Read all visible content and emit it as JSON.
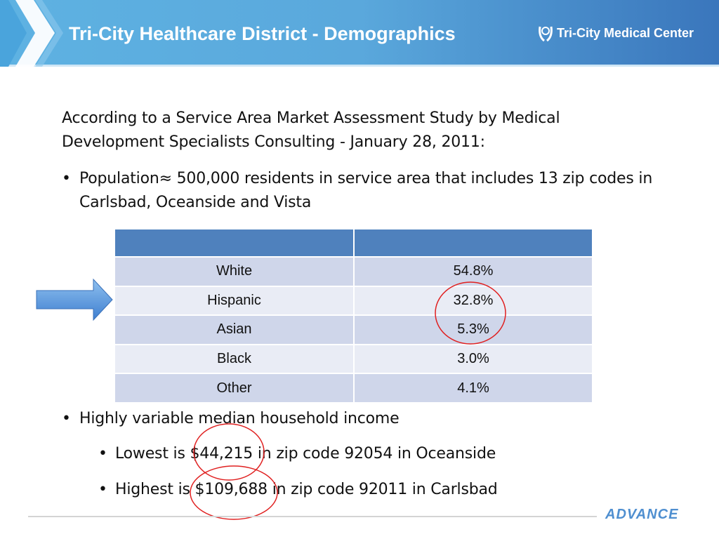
{
  "header": {
    "title": "Tri-City Healthcare District - Demographics",
    "logo_text": "Tri-City Medical Center"
  },
  "intro": {
    "line1": "According to a Service Area Market Assessment Study by Medical",
    "line2": "Development Specialists Consulting - January 28, 2011:"
  },
  "bullets": {
    "population_line1": "Population≈ 500,000 residents in service area that includes 13 zip codes in",
    "population_line2": "Carlsbad, Oceanside and Vista",
    "income": "Highly variable median household income",
    "lowest": "Lowest is $44,215 in zip code 92054 in Oceanside",
    "highest": "Highest is $109,688 in zip code 92011 in Carlsbad"
  },
  "table": {
    "header": [
      "",
      ""
    ],
    "rows": [
      [
        "White",
        "54.8%"
      ],
      [
        "Hispanic",
        "32.8%"
      ],
      [
        "Asian",
        "5.3%"
      ],
      [
        "Black",
        "3.0%"
      ],
      [
        "Other",
        "4.1%"
      ]
    ]
  },
  "footer": {
    "brand": "ADVANCE"
  },
  "colors": {
    "header_start": "#5eb2e2",
    "header_end": "#3a76bc",
    "table_header": "#4f81bd",
    "annotation": "#e02020"
  }
}
